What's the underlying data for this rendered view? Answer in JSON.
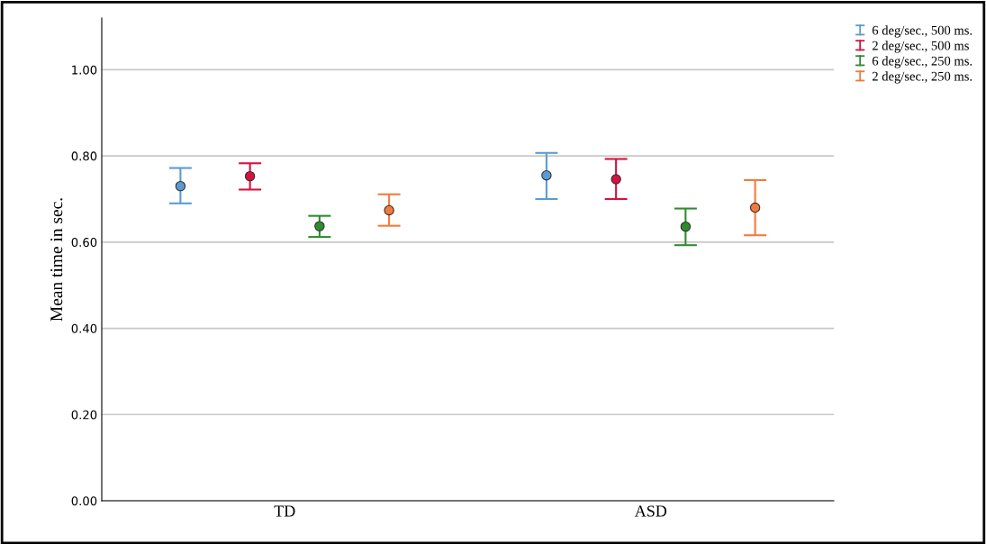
{
  "chart_data": {
    "type": "scatter",
    "ylabel": "Mean time in sec.",
    "categories": [
      "TD",
      "ASD"
    ],
    "series": [
      {
        "name": "6 deg/sec., 500 ms.",
        "color": "#5b9bd5",
        "values": [
          0.73,
          0.755
        ],
        "errors": [
          [
            0.69,
            0.772
          ],
          [
            0.7,
            0.807
          ]
        ]
      },
      {
        "name": "2 deg/sec., 500 ms",
        "color": "#d6113f",
        "values": [
          0.753,
          0.746
        ],
        "errors": [
          [
            0.722,
            0.783
          ],
          [
            0.7,
            0.793
          ]
        ]
      },
      {
        "name": "6 deg/sec., 250 ms.",
        "color": "#2e8b2e",
        "values": [
          0.637,
          0.636
        ],
        "errors": [
          [
            0.612,
            0.661
          ],
          [
            0.593,
            0.678
          ]
        ]
      },
      {
        "name": "2 deg/sec., 250 ms.",
        "color": "#f47a3a",
        "values": [
          0.674,
          0.68
        ],
        "errors": [
          [
            0.638,
            0.711
          ],
          [
            0.616,
            0.744
          ]
        ]
      }
    ],
    "ylim": [
      0,
      1.12
    ],
    "yticks": [
      {
        "value": 0,
        "label": "0.00"
      },
      {
        "value": 0.2,
        "label": "0.20"
      },
      {
        "value": 0.4,
        "label": "0.40"
      },
      {
        "value": 0.6,
        "label": "0.60"
      },
      {
        "value": 0.8,
        "label": "0.80"
      },
      {
        "value": 1.0,
        "label": "1.00"
      }
    ],
    "grid": "y",
    "legend": "top right",
    "marker": "circle"
  }
}
